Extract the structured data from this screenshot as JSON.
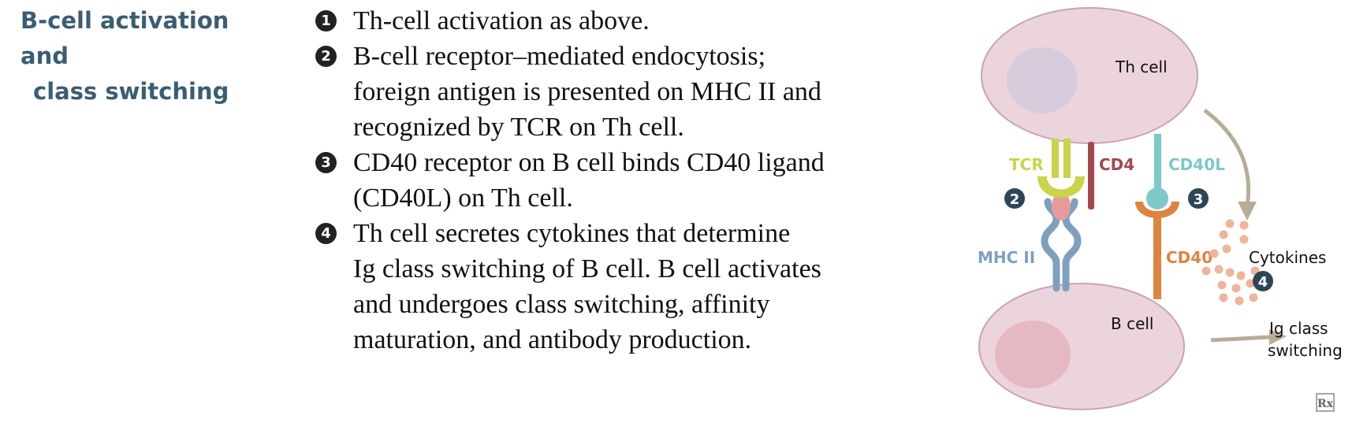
{
  "heading": {
    "line1": "B-cell activation and",
    "line2": "class switching"
  },
  "steps": [
    {
      "number": "1",
      "lines": [
        "Th-cell activation as above."
      ]
    },
    {
      "number": "2",
      "lines": [
        "B-cell receptor–mediated endocytosis;",
        "foreign antigen is presented on MHC II and",
        "recognized by TCR on Th cell."
      ]
    },
    {
      "number": "3",
      "lines": [
        "CD40 receptor on B cell binds CD40 ligand",
        "(CD40L) on Th cell."
      ]
    },
    {
      "number": "4",
      "lines": [
        "Th cell secretes cytokines that determine",
        "Ig class switching of B cell. B cell activates",
        "and undergoes class switching, affinity",
        "maturation, and antibody production."
      ]
    }
  ],
  "diagram": {
    "th_cell_label": "Th cell",
    "b_cell_label": "B cell",
    "tcr_label": "TCR",
    "cd4_label": "CD4",
    "cd40l_label": "CD40L",
    "mhc2_label": "MHC II",
    "cd40_label": "CD40",
    "cytokines_label": "Cytokines",
    "ig_label_line1": "Ig class",
    "ig_label_line2": "switching",
    "marker_2": "2",
    "marker_3": "3",
    "marker_4": "4",
    "rx_logo": "Rx",
    "colors": {
      "cell_fill": "#ecd4dc",
      "cell_stroke": "#c9a3b2",
      "th_nucleus": "#d7ccdc",
      "b_nucleus": "#e6b8c3",
      "tcr": "#c9d44a",
      "cd4": "#a3484c",
      "cd40l": "#7ec8c8",
      "mhc2": "#7f9fbf",
      "cd40": "#dd8540",
      "antigen": "#e89a9a",
      "cytokine": "#f0b49a",
      "arrow": "#b7ad95",
      "marker": "#2c4655"
    }
  }
}
